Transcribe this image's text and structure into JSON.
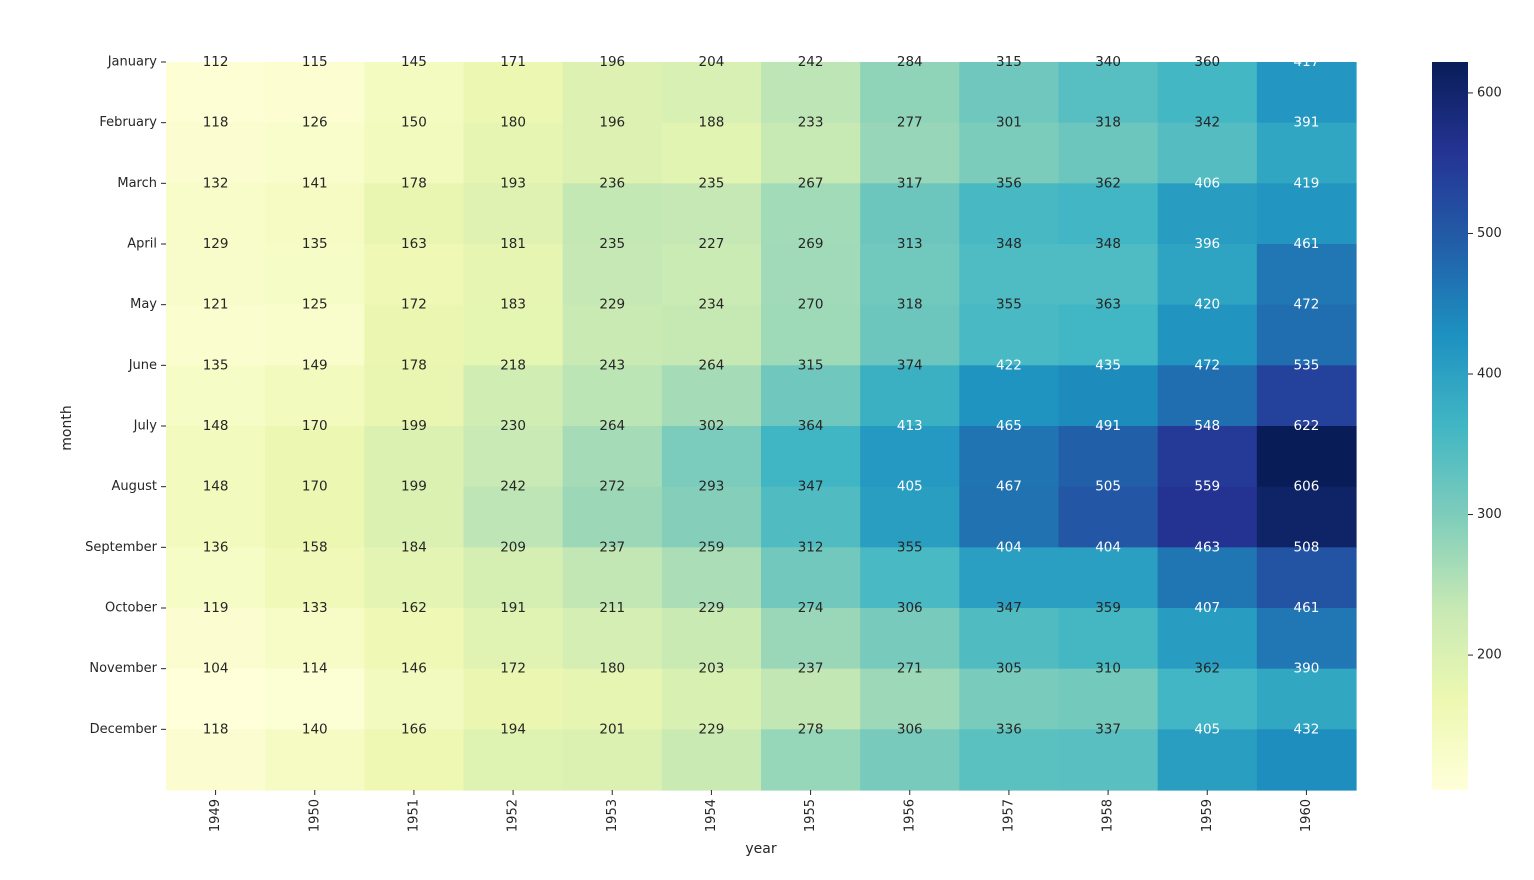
{
  "chart_data": {
    "type": "heatmap",
    "title": "",
    "xlabel": "year",
    "ylabel": "month",
    "x": [
      "1949",
      "1950",
      "1951",
      "1952",
      "1953",
      "1954",
      "1955",
      "1956",
      "1957",
      "1958",
      "1959",
      "1960"
    ],
    "y": [
      "January",
      "February",
      "March",
      "April",
      "May",
      "June",
      "July",
      "August",
      "September",
      "October",
      "November",
      "December"
    ],
    "values": [
      [
        112,
        115,
        145,
        171,
        196,
        204,
        242,
        284,
        315,
        340,
        360,
        417
      ],
      [
        118,
        126,
        150,
        180,
        196,
        188,
        233,
        277,
        301,
        318,
        342,
        391
      ],
      [
        132,
        141,
        178,
        193,
        236,
        235,
        267,
        317,
        356,
        362,
        406,
        419
      ],
      [
        129,
        135,
        163,
        181,
        235,
        227,
        269,
        313,
        348,
        348,
        396,
        461
      ],
      [
        121,
        125,
        172,
        183,
        229,
        234,
        270,
        318,
        355,
        363,
        420,
        472
      ],
      [
        135,
        149,
        178,
        218,
        243,
        264,
        315,
        374,
        422,
        435,
        472,
        535
      ],
      [
        148,
        170,
        199,
        230,
        264,
        302,
        364,
        413,
        465,
        491,
        548,
        622
      ],
      [
        148,
        170,
        199,
        242,
        272,
        293,
        347,
        405,
        467,
        505,
        559,
        606
      ],
      [
        136,
        158,
        184,
        209,
        237,
        259,
        312,
        355,
        404,
        404,
        463,
        508
      ],
      [
        119,
        133,
        162,
        191,
        211,
        229,
        274,
        306,
        347,
        359,
        407,
        461
      ],
      [
        104,
        114,
        146,
        172,
        180,
        203,
        237,
        271,
        305,
        310,
        362,
        390
      ],
      [
        118,
        140,
        166,
        194,
        201,
        229,
        278,
        306,
        336,
        337,
        405,
        432
      ]
    ],
    "colormap": "YlGnBu",
    "vmin": 104,
    "vmax": 622,
    "colorbar_ticks": [
      200,
      300,
      400,
      500,
      600
    ],
    "annotations": true,
    "grid": false,
    "legend": "colorbar-right"
  }
}
